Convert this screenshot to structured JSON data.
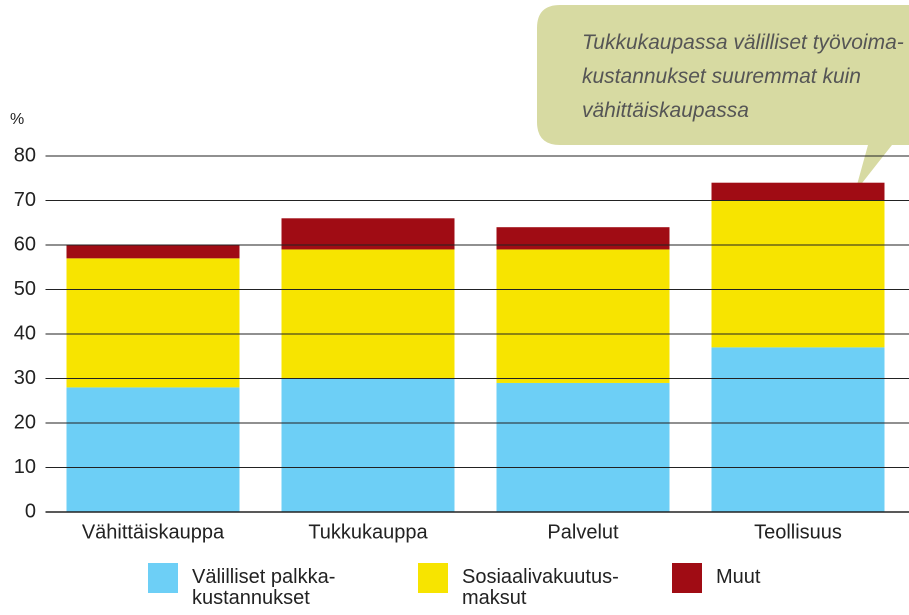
{
  "chart_data": {
    "type": "stacked_bar",
    "y_label": "%",
    "annotation": "Tukkukaupassa välilliset työvoima-\nkustannukset suuremmat kuin\nvähittäiskaupassa",
    "categories": [
      "Vähittäiskauppa",
      "Tukkukauppa",
      "Palvelut",
      "Teollisuus"
    ],
    "series": [
      {
        "name": "Välilliset palkka-\nkustannukset",
        "color": "#6dcff6",
        "values": [
          28,
          30,
          29,
          37
        ]
      },
      {
        "name": "Sosiaalivakuutus-\nmaksut",
        "color": "#f7e400",
        "values": [
          29,
          29,
          30,
          33
        ]
      },
      {
        "name": "Muut",
        "color": "#a00c14",
        "values": [
          3,
          7,
          5,
          4
        ]
      }
    ],
    "ylim": [
      0,
      80
    ],
    "yticks": [
      0,
      10,
      20,
      30,
      40,
      50,
      60,
      70,
      80
    ],
    "grid": true
  }
}
